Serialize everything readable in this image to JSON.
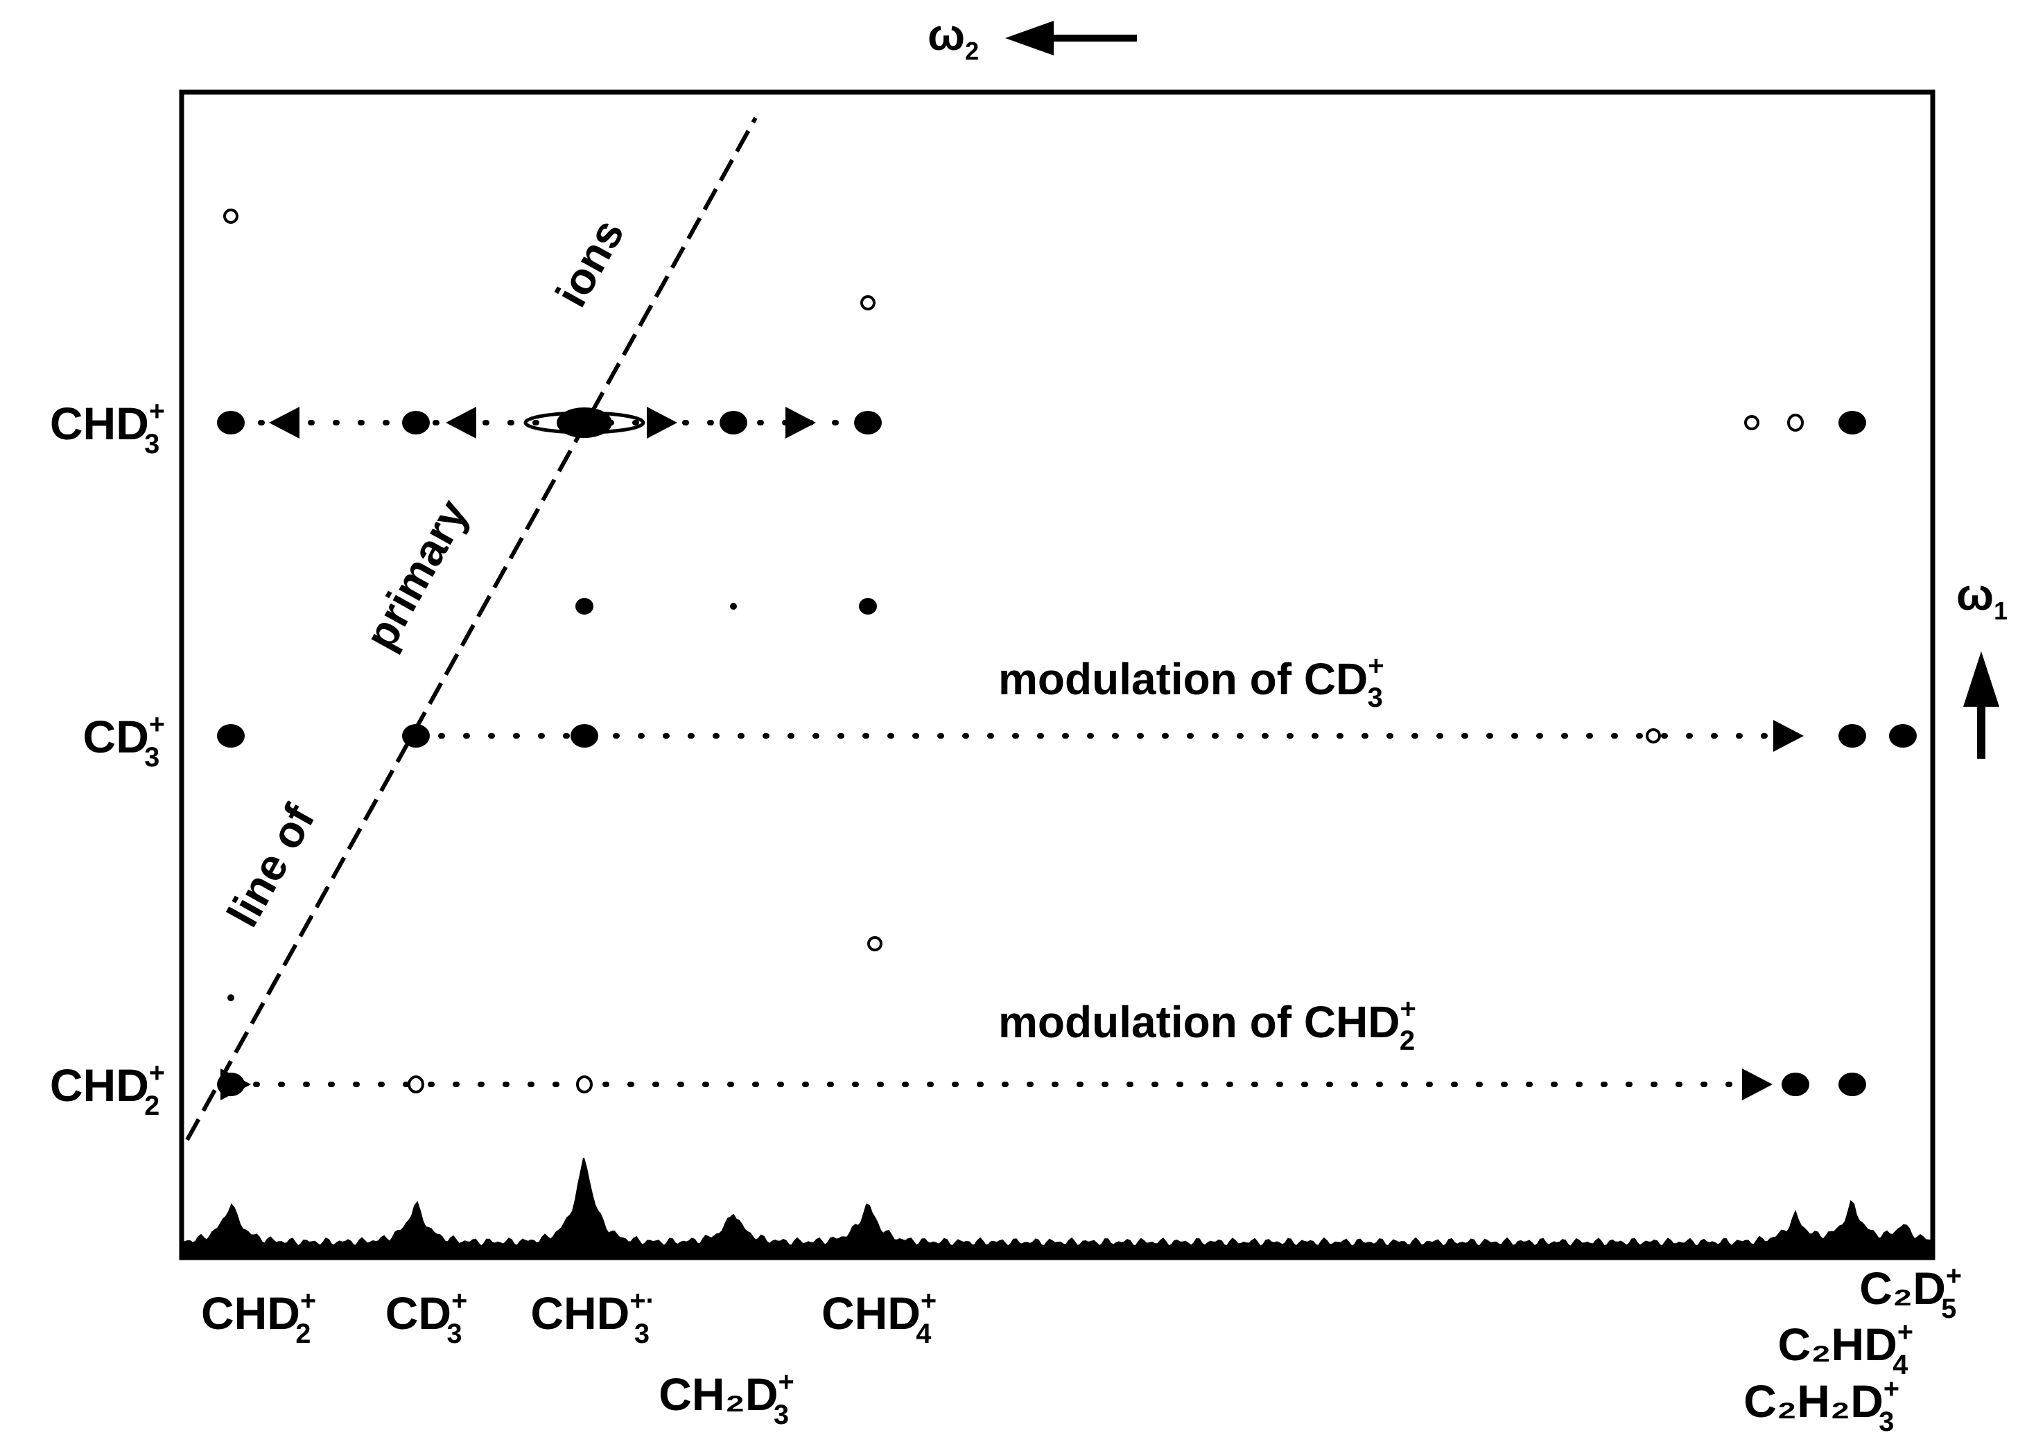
{
  "chart_data": {
    "type": "scatter",
    "title": "",
    "axes": {
      "omega2": {
        "symbol": "ω",
        "index": "2",
        "direction": "left"
      },
      "omega1": {
        "symbol": "ω",
        "index": "1",
        "direction": "up"
      }
    },
    "x_ions": [
      {
        "id": "chd2",
        "base": "CHD",
        "n": "2",
        "charge": "+"
      },
      {
        "id": "cd3",
        "base": "CD",
        "n": "3",
        "charge": "+"
      },
      {
        "id": "chd3",
        "base": "CHD",
        "n": "3",
        "charge": "+·"
      },
      {
        "id": "ch2d3",
        "base": "CH₂D",
        "n": "3",
        "charge": "+"
      },
      {
        "id": "chd4",
        "base": "CHD",
        "n": "4",
        "charge": "+"
      },
      {
        "id": "c2h2d3",
        "base": "C₂H₂D",
        "n": "3",
        "charge": "+"
      },
      {
        "id": "c2hd4",
        "base": "C₂HD",
        "n": "4",
        "charge": "+"
      },
      {
        "id": "c2d5",
        "base": "C₂D",
        "n": "5",
        "charge": "+"
      }
    ],
    "y_ions": [
      {
        "id": "chd2",
        "base": "CHD",
        "n": "2",
        "charge": "+"
      },
      {
        "id": "cd3",
        "base": "CD",
        "n": "3",
        "charge": "+"
      },
      {
        "id": "chd3",
        "base": "CHD",
        "n": "3",
        "charge": "+"
      }
    ],
    "diagonal_label": [
      "line of",
      "primary",
      "ions"
    ],
    "row_labels": [
      {
        "row": "cd3",
        "text": "modulation of CD",
        "n": "3",
        "charge": "+"
      },
      {
        "row": "chd2",
        "text": "modulation of CHD",
        "n": "2",
        "charge": "+"
      }
    ],
    "peaks": [
      {
        "x": "chd2",
        "y": "chd3",
        "type": "filled"
      },
      {
        "x": "cd3",
        "y": "chd3",
        "type": "filled"
      },
      {
        "x": "chd3",
        "y": "chd3",
        "type": "filled-large"
      },
      {
        "x": "ch2d3",
        "y": "chd3",
        "type": "filled"
      },
      {
        "x": "chd4",
        "y": "chd3",
        "type": "filled"
      },
      {
        "x": "c2h2d3",
        "y": "chd3",
        "type": "open"
      },
      {
        "x": "c2hd4",
        "y": "chd3",
        "type": "filled"
      },
      {
        "x": "chd2",
        "y": "cd3",
        "type": "filled"
      },
      {
        "x": "cd3",
        "y": "cd3",
        "type": "filled"
      },
      {
        "x": "chd3",
        "y": "cd3",
        "type": "filled"
      },
      {
        "x": "c2hd4",
        "y": "cd3",
        "type": "filled"
      },
      {
        "x": "c2d5",
        "y": "cd3",
        "type": "filled"
      },
      {
        "x": "chd2",
        "y": "chd2",
        "type": "filled"
      },
      {
        "x": "cd3",
        "y": "chd2",
        "type": "open"
      },
      {
        "x": "chd3",
        "y": "chd2",
        "type": "open"
      },
      {
        "x": "c2h2d3",
        "y": "chd2",
        "type": "filled"
      },
      {
        "x": "c2hd4",
        "y": "chd2",
        "type": "filled"
      }
    ],
    "spectrum_peaks": [
      {
        "x": "chd2",
        "height": 0.45
      },
      {
        "x": "cd3",
        "height": 0.45
      },
      {
        "x": "chd3",
        "height": 1.0
      },
      {
        "x": "ch2d3",
        "height": 0.35
      },
      {
        "x": "chd4",
        "height": 0.45
      },
      {
        "x": "c2h2d3",
        "height": 0.3
      },
      {
        "x": "c2hd4",
        "height": 0.45
      },
      {
        "x": "c2d5",
        "height": 0.2
      }
    ]
  }
}
